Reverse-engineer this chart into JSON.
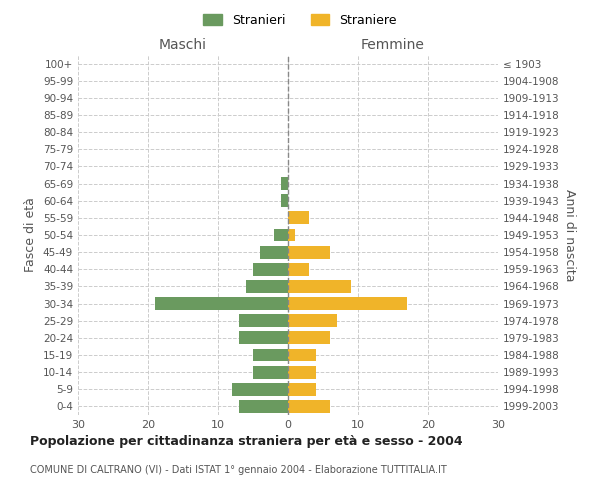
{
  "age_groups": [
    "0-4",
    "5-9",
    "10-14",
    "15-19",
    "20-24",
    "25-29",
    "30-34",
    "35-39",
    "40-44",
    "45-49",
    "50-54",
    "55-59",
    "60-64",
    "65-69",
    "70-74",
    "75-79",
    "80-84",
    "85-89",
    "90-94",
    "95-99",
    "100+"
  ],
  "birth_years": [
    "1999-2003",
    "1994-1998",
    "1989-1993",
    "1984-1988",
    "1979-1983",
    "1974-1978",
    "1969-1973",
    "1964-1968",
    "1959-1963",
    "1954-1958",
    "1949-1953",
    "1944-1948",
    "1939-1943",
    "1934-1938",
    "1929-1933",
    "1924-1928",
    "1919-1923",
    "1914-1918",
    "1909-1913",
    "1904-1908",
    "≤ 1903"
  ],
  "males": [
    7,
    8,
    5,
    5,
    7,
    7,
    19,
    6,
    5,
    4,
    2,
    0,
    1,
    1,
    0,
    0,
    0,
    0,
    0,
    0,
    0
  ],
  "females": [
    6,
    4,
    4,
    4,
    6,
    7,
    17,
    9,
    3,
    6,
    1,
    3,
    0,
    0,
    0,
    0,
    0,
    0,
    0,
    0,
    0
  ],
  "male_color": "#6a9a5f",
  "female_color": "#f0b429",
  "xlim": 30,
  "title": "Popolazione per cittadinanza straniera per età e sesso - 2004",
  "subtitle": "COMUNE DI CALTRANO (VI) - Dati ISTAT 1° gennaio 2004 - Elaborazione TUTTITALIA.IT",
  "ylabel_left": "Fasce di età",
  "ylabel_right": "Anni di nascita",
  "legend_male": "Stranieri",
  "legend_female": "Straniere",
  "maschi_label": "Maschi",
  "femmine_label": "Femmine",
  "background_color": "#ffffff",
  "grid_color": "#cccccc"
}
